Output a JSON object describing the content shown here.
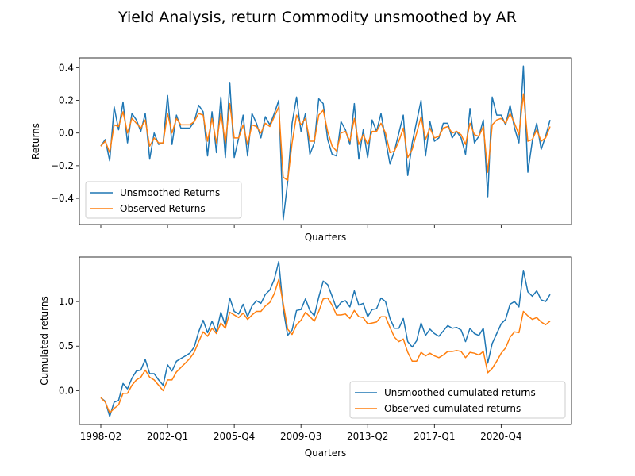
{
  "figure": {
    "title": "Yield Analysis, return Commodity unsmoothed by AR"
  },
  "chart_data": [
    {
      "type": "line",
      "xlabel": "Quarters",
      "ylabel": "Returns",
      "ylim": [
        -0.56,
        0.46
      ],
      "yticks": [
        -0.4,
        -0.2,
        0.0,
        0.2,
        0.4
      ],
      "ytick_labels": [
        "−0.4",
        "−0.2",
        "0.0",
        "0.2",
        "0.4"
      ],
      "x_tick_labels_visible": false,
      "legend": "lower-left",
      "series": [
        {
          "name": "Unsmoothed Returns",
          "color": "#1f77b4",
          "values": [
            -0.08,
            -0.04,
            -0.17,
            0.16,
            0.02,
            0.19,
            -0.06,
            0.12,
            0.08,
            0.01,
            0.12,
            -0.16,
            0.0,
            -0.07,
            -0.06,
            0.23,
            -0.07,
            0.11,
            0.03,
            0.03,
            0.03,
            0.07,
            0.17,
            0.13,
            -0.14,
            0.13,
            -0.12,
            0.22,
            -0.15,
            0.31,
            -0.15,
            -0.03,
            0.11,
            -0.14,
            0.12,
            0.06,
            -0.03,
            0.1,
            0.05,
            0.12,
            0.2,
            -0.53,
            -0.3,
            0.06,
            0.22,
            0.01,
            0.12,
            -0.13,
            -0.06,
            0.21,
            0.18,
            -0.04,
            -0.13,
            -0.14,
            0.07,
            0.02,
            -0.07,
            0.18,
            -0.16,
            0.02,
            -0.15,
            0.08,
            0.01,
            0.12,
            -0.04,
            -0.19,
            -0.11,
            0.0,
            0.11,
            -0.26,
            -0.06,
            0.07,
            0.2,
            -0.14,
            0.07,
            -0.05,
            -0.03,
            0.06,
            0.06,
            -0.03,
            0.01,
            -0.03,
            -0.13,
            0.15,
            -0.06,
            -0.02,
            0.08,
            -0.39,
            0.22,
            0.11,
            0.11,
            0.05,
            0.17,
            0.03,
            -0.06,
            0.41,
            -0.24,
            -0.05,
            0.06,
            -0.1,
            -0.02,
            0.08
          ]
        },
        {
          "name": "Observed Returns",
          "color": "#ff7f0e",
          "values": [
            -0.08,
            -0.05,
            -0.12,
            0.05,
            0.04,
            0.13,
            0.0,
            0.09,
            0.06,
            0.03,
            0.08,
            -0.08,
            -0.03,
            -0.06,
            -0.06,
            0.12,
            0.0,
            0.09,
            0.05,
            0.05,
            0.05,
            0.07,
            0.12,
            0.11,
            -0.05,
            0.09,
            -0.06,
            0.12,
            -0.06,
            0.18,
            -0.03,
            -0.03,
            0.05,
            -0.07,
            0.05,
            0.04,
            0.0,
            0.06,
            0.04,
            0.1,
            0.16,
            -0.27,
            -0.29,
            -0.06,
            0.11,
            0.05,
            0.09,
            -0.05,
            -0.05,
            0.11,
            0.14,
            0.01,
            -0.08,
            -0.11,
            0.0,
            0.01,
            -0.05,
            0.09,
            -0.07,
            -0.01,
            -0.07,
            0.01,
            0.01,
            0.06,
            0.0,
            -0.12,
            -0.11,
            -0.05,
            0.03,
            -0.15,
            -0.1,
            0.0,
            0.1,
            -0.04,
            0.03,
            -0.03,
            -0.02,
            0.03,
            0.04,
            0.0,
            0.01,
            -0.01,
            -0.07,
            0.06,
            -0.01,
            -0.02,
            0.04,
            -0.24,
            0.05,
            0.08,
            0.09,
            0.06,
            0.12,
            0.06,
            -0.01,
            0.24,
            -0.05,
            -0.04,
            0.02,
            -0.05,
            -0.03,
            0.04
          ]
        }
      ]
    },
    {
      "type": "line",
      "xlabel": "Quarters",
      "ylabel": "Cumulated returns",
      "ylim": [
        -0.38,
        1.5
      ],
      "yticks": [
        0.0,
        0.5,
        1.0
      ],
      "ytick_labels": [
        "0.0",
        "0.5",
        "1.0"
      ],
      "x_tick_labels": [
        "1998-Q2",
        "2002-Q1",
        "2005-Q4",
        "2009-Q3",
        "2013-Q2",
        "2017-Q1",
        "2020-Q4"
      ],
      "x_tick_indices": [
        0,
        15,
        30,
        45,
        60,
        75,
        90
      ],
      "legend": "lower-right",
      "series": [
        {
          "name": "Unsmoothed cumulated returns",
          "color": "#1f77b4",
          "values": [
            -0.08,
            -0.12,
            -0.29,
            -0.13,
            -0.11,
            0.08,
            0.02,
            0.14,
            0.22,
            0.23,
            0.35,
            0.19,
            0.19,
            0.12,
            0.06,
            0.29,
            0.22,
            0.33,
            0.36,
            0.39,
            0.42,
            0.49,
            0.66,
            0.79,
            0.65,
            0.78,
            0.66,
            0.88,
            0.73,
            1.04,
            0.89,
            0.86,
            0.97,
            0.83,
            0.95,
            1.01,
            0.98,
            1.08,
            1.13,
            1.25,
            1.45,
            0.92,
            0.62,
            0.68,
            0.9,
            0.91,
            1.03,
            0.9,
            0.84,
            1.05,
            1.23,
            1.19,
            1.06,
            0.92,
            0.99,
            1.01,
            0.94,
            1.12,
            0.96,
            0.98,
            0.83,
            0.91,
            0.92,
            1.04,
            1.0,
            0.81,
            0.7,
            0.7,
            0.81,
            0.55,
            0.49,
            0.56,
            0.76,
            0.62,
            0.69,
            0.64,
            0.61,
            0.67,
            0.73,
            0.7,
            0.71,
            0.68,
            0.55,
            0.7,
            0.64,
            0.62,
            0.7,
            0.31,
            0.53,
            0.64,
            0.75,
            0.8,
            0.97,
            1.0,
            0.94,
            1.35,
            1.11,
            1.06,
            1.12,
            1.02,
            1.0,
            1.08
          ]
        },
        {
          "name": "Observed cumulated returns",
          "color": "#ff7f0e",
          "values": [
            -0.08,
            -0.13,
            -0.25,
            -0.2,
            -0.16,
            -0.03,
            -0.03,
            0.06,
            0.12,
            0.15,
            0.23,
            0.15,
            0.12,
            0.06,
            0.0,
            0.12,
            0.12,
            0.21,
            0.26,
            0.31,
            0.36,
            0.43,
            0.55,
            0.66,
            0.61,
            0.7,
            0.64,
            0.76,
            0.7,
            0.88,
            0.85,
            0.82,
            0.87,
            0.8,
            0.85,
            0.89,
            0.89,
            0.95,
            0.99,
            1.09,
            1.25,
            0.98,
            0.69,
            0.63,
            0.74,
            0.79,
            0.88,
            0.83,
            0.78,
            0.89,
            1.03,
            1.04,
            0.96,
            0.85,
            0.85,
            0.86,
            0.81,
            0.9,
            0.83,
            0.82,
            0.75,
            0.76,
            0.77,
            0.83,
            0.83,
            0.71,
            0.6,
            0.55,
            0.58,
            0.43,
            0.33,
            0.33,
            0.43,
            0.39,
            0.42,
            0.39,
            0.37,
            0.4,
            0.44,
            0.44,
            0.45,
            0.44,
            0.37,
            0.43,
            0.42,
            0.4,
            0.44,
            0.2,
            0.25,
            0.33,
            0.42,
            0.48,
            0.6,
            0.66,
            0.65,
            0.89,
            0.84,
            0.8,
            0.82,
            0.77,
            0.74,
            0.78
          ]
        }
      ]
    }
  ]
}
